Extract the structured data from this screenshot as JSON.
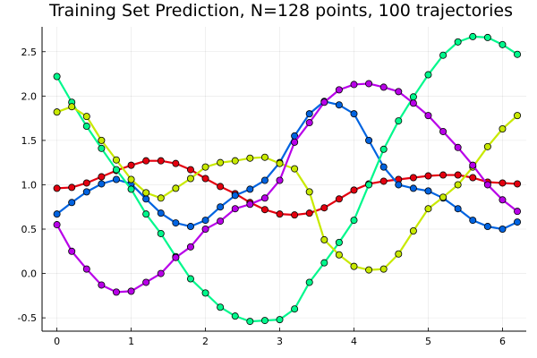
{
  "chart_data": {
    "type": "line",
    "title": "Training Set Prediction, N=128 points, 100 trajectories",
    "xlabel": "",
    "ylabel": "",
    "xlim": [
      -0.2,
      6.32
    ],
    "ylim": [
      -0.65,
      2.78
    ],
    "xticks": [
      0,
      1,
      2,
      3,
      4,
      5,
      6
    ],
    "yticks": [
      -0.5,
      0.0,
      0.5,
      1.0,
      1.5,
      2.0,
      2.5
    ],
    "ytick_labels": [
      "-0.5",
      "0.0",
      "0.5",
      "1.0",
      "1.5",
      "2.0",
      "2.5"
    ],
    "grid": true,
    "legend": "none",
    "x": [
      0.0,
      0.2,
      0.4,
      0.6,
      0.8,
      1.0,
      1.2,
      1.4,
      1.6,
      1.8,
      2.0,
      2.2,
      2.4,
      2.6,
      2.8,
      3.0,
      3.2,
      3.4,
      3.6,
      3.8,
      4.0,
      4.2,
      4.4,
      4.6,
      4.8,
      5.0,
      5.2,
      5.4,
      5.6,
      5.8,
      6.0,
      6.2
    ],
    "series": [
      {
        "color": "#e4000f",
        "values": [
          0.96,
          0.97,
          1.02,
          1.09,
          1.16,
          1.22,
          1.27,
          1.27,
          1.24,
          1.17,
          1.07,
          0.98,
          0.9,
          0.8,
          0.72,
          0.67,
          0.66,
          0.68,
          0.74,
          0.84,
          0.94,
          1.01,
          1.04,
          1.06,
          1.08,
          1.1,
          1.11,
          1.11,
          1.08,
          1.03,
          1.02,
          1.01
        ]
      },
      {
        "color": "#0063e0",
        "values": [
          0.67,
          0.8,
          0.92,
          1.01,
          1.06,
          1.01,
          0.84,
          0.68,
          0.57,
          0.53,
          0.6,
          0.75,
          0.88,
          0.95,
          1.05,
          1.25,
          1.55,
          1.8,
          1.94,
          1.9,
          1.8,
          1.5,
          1.2,
          1.0,
          0.96,
          0.93,
          0.85,
          0.73,
          0.6,
          0.53,
          0.5,
          0.58
        ]
      },
      {
        "color": "#00f88c",
        "values": [
          2.22,
          1.93,
          1.66,
          1.41,
          1.17,
          0.95,
          0.67,
          0.45,
          0.19,
          -0.06,
          -0.22,
          -0.38,
          -0.48,
          -0.54,
          -0.53,
          -0.52,
          -0.4,
          -0.1,
          0.12,
          0.35,
          0.6,
          1.0,
          1.4,
          1.72,
          1.99,
          2.24,
          2.46,
          2.61,
          2.67,
          2.66,
          2.58,
          2.47
        ]
      },
      {
        "color": "#c8e900",
        "values": [
          1.82,
          1.88,
          1.77,
          1.5,
          1.28,
          1.06,
          0.91,
          0.85,
          0.96,
          1.07,
          1.2,
          1.25,
          1.27,
          1.3,
          1.31,
          1.24,
          1.18,
          0.92,
          0.38,
          0.21,
          0.08,
          0.04,
          0.05,
          0.22,
          0.48,
          0.73,
          0.86,
          1.0,
          1.2,
          1.43,
          1.63,
          1.78
        ]
      },
      {
        "color": "#b800e8",
        "values": [
          0.55,
          0.25,
          0.05,
          -0.13,
          -0.21,
          -0.2,
          -0.1,
          0.0,
          0.18,
          0.3,
          0.5,
          0.59,
          0.73,
          0.78,
          0.85,
          1.05,
          1.48,
          1.7,
          1.93,
          2.07,
          2.13,
          2.14,
          2.1,
          2.05,
          1.92,
          1.78,
          1.6,
          1.42,
          1.22,
          1.0,
          0.83,
          0.7
        ]
      }
    ]
  }
}
